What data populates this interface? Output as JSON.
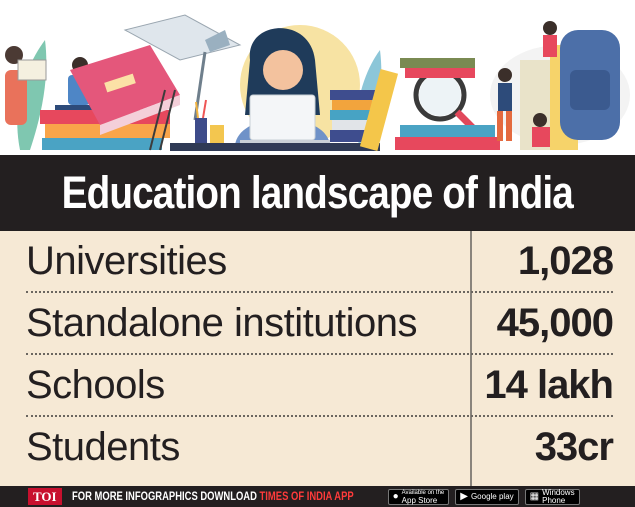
{
  "title": "Education landscape of India",
  "rows": [
    {
      "label": "Universities",
      "value": "1,028"
    },
    {
      "label": "Standalone institutions",
      "value": "45,000"
    },
    {
      "label": "Schools",
      "value": "14 lakh"
    },
    {
      "label": "Students",
      "value": "33cr"
    }
  ],
  "footer": {
    "logo": "TOI",
    "promo_text": "FOR MORE  INFOGRAPHICS DOWNLOAD ",
    "promo_app": "TIMES OF INDIA  APP",
    "stores": [
      {
        "icon": "apple-icon",
        "line1": "Available on the",
        "line2": "App Store"
      },
      {
        "icon": "google-play-icon",
        "line1": "",
        "line2": "Google play"
      },
      {
        "icon": "windows-icon",
        "line1": "Windows",
        "line2": "Phone"
      }
    ]
  },
  "colors": {
    "title_bg": "#231f20",
    "table_bg": "#f6e9d5",
    "text": "#231f20",
    "logo_red": "#c8102e"
  }
}
